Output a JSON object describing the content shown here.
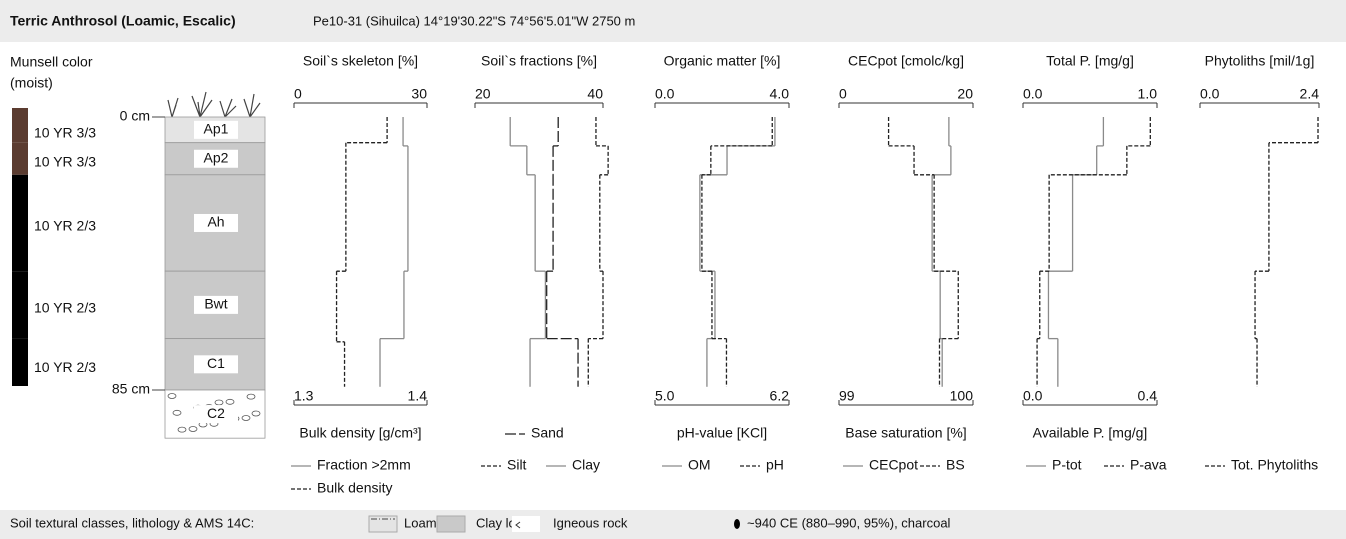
{
  "header": {
    "title": "Terric Anthrosol (Loamic, Escalic)",
    "location": "Pe10-31 (Sihuilca) 14°19'30.22\"S 74°56'5.01\"W 2750 m"
  },
  "profile": {
    "munsell_title": [
      "Munsell color",
      "(moist)"
    ],
    "ylim": [
      0,
      85
    ],
    "depth_ticks": [
      {
        "value": 0,
        "label": "0 cm"
      },
      {
        "value": 85,
        "label": "85 cm"
      }
    ],
    "horizons": [
      {
        "name": "Ap1",
        "top": 0,
        "bottom": 8,
        "munsell": "10 YR 3/3",
        "color": "#5b3c30",
        "fill": "#e4e4e4"
      },
      {
        "name": "Ap2",
        "top": 8,
        "bottom": 18,
        "munsell": "10 YR 3/3",
        "color": "#5b3c30",
        "fill": "#c9c9c9"
      },
      {
        "name": "Ah",
        "top": 18,
        "bottom": 48,
        "munsell": "10 YR 2/3",
        "color": "#000000",
        "fill": "#c9c9c9"
      },
      {
        "name": "Bwt",
        "top": 48,
        "bottom": 69,
        "munsell": "10 YR 2/3",
        "color": "#000000",
        "fill": "#c9c9c9"
      },
      {
        "name": "C1",
        "top": 69,
        "bottom": 85,
        "munsell": "10 YR 2/3",
        "color": "#000000",
        "fill": "#c9c9c9"
      },
      {
        "name": "C2",
        "top": 85,
        "bottom": 100,
        "fill": "#ffffff"
      }
    ]
  },
  "chart_data": [
    {
      "type": "step",
      "title": "Soil`s skeleton [%]",
      "xlim": [
        0,
        30
      ],
      "xticks": [
        0,
        30
      ],
      "x2title": "Bulk density [g/cm³]",
      "x2lim": [
        1.3,
        1.4
      ],
      "x2ticks": [
        1.3,
        1.4
      ],
      "series": [
        {
          "name": "Fraction >2mm",
          "style": "solid",
          "color": "#8a8a8a",
          "depths": [
            0,
            9,
            48,
            69,
            84
          ],
          "values": [
            24.6,
            25.7,
            24.8,
            19.4
          ]
        },
        {
          "name": "Bulk density",
          "style": "dashed",
          "color": "#222222",
          "axis": "x2",
          "depths": [
            0,
            8,
            48,
            70,
            84
          ],
          "values": [
            1.37,
            1.339,
            1.332,
            1.338
          ]
        }
      ]
    },
    {
      "type": "step",
      "title": "Soil`s fractions [%]",
      "xlim": [
        20,
        40
      ],
      "xticks": [
        20,
        40
      ],
      "series": [
        {
          "name": "Sand",
          "style": "longdash",
          "color": "#222222",
          "depths": [
            0,
            9,
            18,
            48,
            69,
            84
          ],
          "values": [
            33,
            32.2,
            32.2,
            31.2,
            36.1
          ]
        },
        {
          "name": "Silt",
          "style": "dashed",
          "color": "#222222",
          "depths": [
            0,
            9,
            18,
            48,
            69,
            84
          ],
          "values": [
            38.9,
            40.8,
            39.5,
            40,
            37.7
          ]
        },
        {
          "name": "Clay",
          "style": "solid",
          "color": "#8a8a8a",
          "depths": [
            0,
            9,
            18,
            48,
            69,
            84
          ],
          "values": [
            25.5,
            28.1,
            29.4,
            31,
            28.6
          ]
        }
      ]
    },
    {
      "type": "step",
      "title": "Organic matter [%]",
      "xlim": [
        0,
        4
      ],
      "xticks": [
        {
          "value": 0,
          "label": "0.0"
        },
        {
          "value": 4,
          "label": "4.0"
        }
      ],
      "x2title": "pH-value [KCl]",
      "x2lim": [
        5,
        6.2
      ],
      "x2ticks": [
        {
          "value": 5,
          "label": "5.0"
        },
        6.2
      ],
      "series": [
        {
          "name": "OM",
          "style": "solid",
          "color": "#8a8a8a",
          "depths": [
            0,
            9,
            18,
            48,
            69,
            84
          ],
          "values": [
            3.58,
            2.15,
            1.34,
            1.79,
            1.55
          ]
        },
        {
          "name": "pH",
          "style": "dashed",
          "color": "#222222",
          "axis": "x2",
          "depths": [
            0,
            9,
            18,
            48,
            69,
            84
          ],
          "values": [
            6.05,
            5.5,
            5.42,
            5.51,
            5.64
          ]
        }
      ]
    },
    {
      "type": "step",
      "title": "CECpot [cmolc/kg]",
      "xlim": [
        0,
        20
      ],
      "xticks": [
        0,
        20
      ],
      "x2title": "Base saturation [%]",
      "x2lim": [
        99,
        100
      ],
      "x2ticks": [
        99,
        100
      ],
      "series": [
        {
          "name": "CECpot",
          "style": "solid",
          "color": "#8a8a8a",
          "depths": [
            0,
            9,
            18,
            48,
            69,
            84
          ],
          "values": [
            16.4,
            16.7,
            13.9,
            15.1,
            15.4
          ]
        },
        {
          "name": "BS",
          "style": "dashed",
          "color": "#222222",
          "axis": "x2",
          "depths": [
            0,
            9,
            18,
            48,
            69,
            84
          ],
          "values": [
            99.37,
            99.56,
            99.71,
            99.89,
            99.75
          ]
        }
      ]
    },
    {
      "type": "step",
      "title": "Total P. [mg/g]",
      "xlim": [
        0,
        1
      ],
      "xticks": [
        {
          "value": 0,
          "label": "0.0"
        },
        {
          "value": 1,
          "label": "1.0"
        }
      ],
      "x2title": "Available P. [mg/g]",
      "x2lim": [
        0,
        0.4
      ],
      "x2ticks": [
        {
          "value": 0,
          "label": "0.0"
        },
        0.4
      ],
      "series": [
        {
          "name": "P-tot",
          "style": "solid",
          "color": "#8a8a8a",
          "depths": [
            0,
            9,
            18,
            48,
            69,
            84
          ],
          "values": [
            0.6,
            0.55,
            0.37,
            0.19,
            0.26
          ]
        },
        {
          "name": "P-ava",
          "style": "dashed",
          "color": "#222222",
          "axis": "x2",
          "depths": [
            0,
            9,
            18,
            48,
            69,
            84
          ],
          "values": [
            0.38,
            0.31,
            0.078,
            0.05,
            0.042
          ]
        }
      ]
    },
    {
      "type": "step",
      "title": "Phytoliths [mil/1g]",
      "xlim": [
        0,
        2.4
      ],
      "xticks": [
        {
          "value": 0,
          "label": "0.0"
        },
        2.4
      ],
      "series": [
        {
          "name": "Tot. Phytoliths",
          "style": "dashed",
          "color": "#222222",
          "depths": [
            0,
            8,
            48,
            69,
            84
          ],
          "values": [
            2.38,
            1.39,
            1.11,
            1.15
          ]
        }
      ]
    }
  ],
  "footer": {
    "title": "Soil textural classes, lithology & AMS 14C:",
    "items": [
      {
        "label": "Loam",
        "fill": "#e4e4e4"
      },
      {
        "label": "Clay loam",
        "fill": "#c9c9c9"
      },
      {
        "label": "Igneous rock",
        "fill": "#ffffff"
      },
      {
        "label": "~940 CE (880–990, 95%), charcoal",
        "fill": "#000000"
      }
    ]
  }
}
